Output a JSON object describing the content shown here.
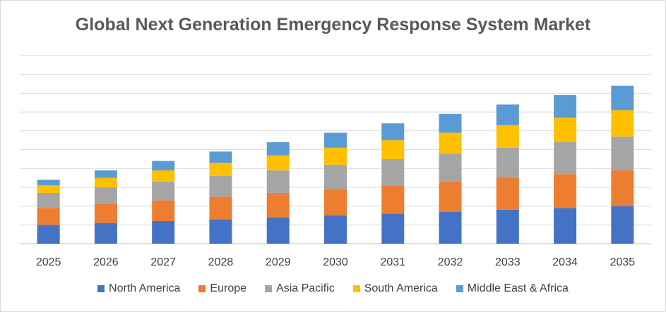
{
  "chart_data": {
    "type": "bar",
    "stacked": true,
    "title": "Global Next Generation Emergency Response System Market",
    "xlabel": "",
    "ylabel": "",
    "ylim": [
      0,
      10
    ],
    "grid": true,
    "legend_position": "bottom",
    "categories": [
      "2025",
      "2026",
      "2027",
      "2028",
      "2029",
      "2030",
      "2031",
      "2032",
      "2033",
      "2034",
      "2035"
    ],
    "series": [
      {
        "name": "North America",
        "color": "#4472C4",
        "values": [
          1.0,
          1.1,
          1.2,
          1.3,
          1.4,
          1.5,
          1.6,
          1.7,
          1.8,
          1.9,
          2.0
        ]
      },
      {
        "name": "Europe",
        "color": "#ED7D31",
        "values": [
          0.9,
          1.0,
          1.1,
          1.2,
          1.3,
          1.4,
          1.5,
          1.6,
          1.7,
          1.8,
          1.9
        ]
      },
      {
        "name": "Asia Pacific",
        "color": "#A5A5A5",
        "values": [
          0.8,
          0.9,
          1.0,
          1.1,
          1.2,
          1.3,
          1.4,
          1.5,
          1.6,
          1.7,
          1.8
        ]
      },
      {
        "name": "South America",
        "color": "#FFC000",
        "values": [
          0.4,
          0.5,
          0.6,
          0.7,
          0.8,
          0.9,
          1.0,
          1.1,
          1.2,
          1.3,
          1.4
        ]
      },
      {
        "name": "Middle East & Africa",
        "color": "#5B9BD5",
        "values": [
          0.3,
          0.4,
          0.5,
          0.6,
          0.7,
          0.8,
          0.9,
          1.0,
          1.1,
          1.2,
          1.3
        ]
      }
    ]
  }
}
